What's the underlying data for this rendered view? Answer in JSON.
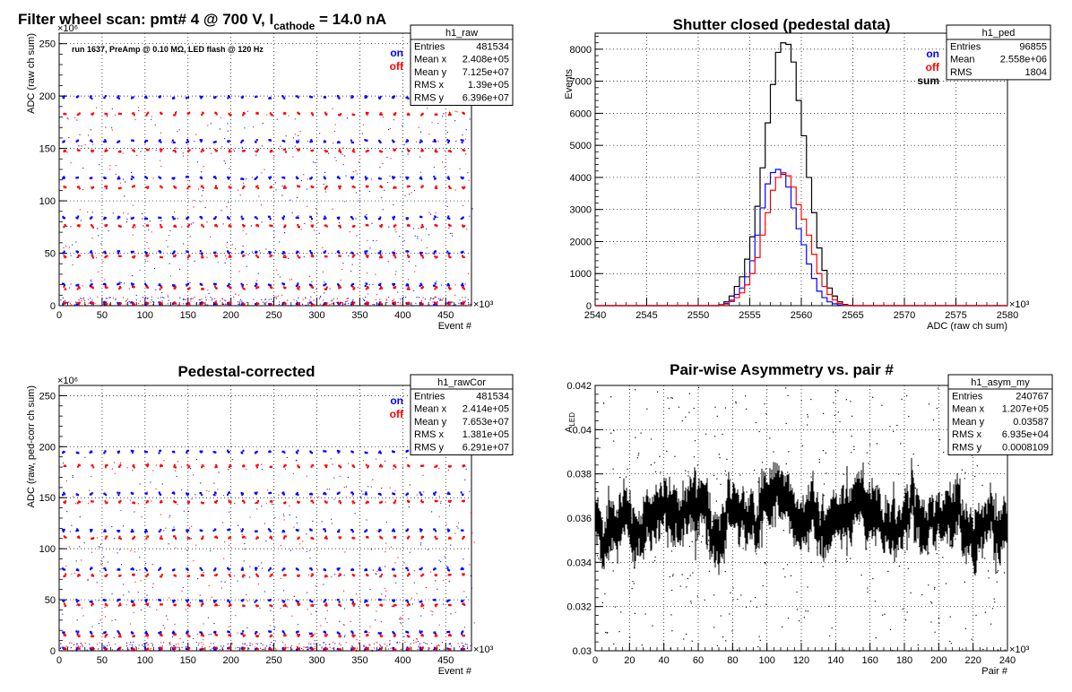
{
  "chart_data": [
    {
      "id": "raw",
      "type": "scatter",
      "title": "Filter wheel scan: pmt#   4 @   700 V, I",
      "title_sub": "cathode",
      "title_tail": "  = 14.0 nA",
      "annotation": "run 1637, PreAmp @ 0.10 MΩ, LED flash @  120 Hz",
      "xlabel": "Event #",
      "ylabel": "ADC (raw ch sum)",
      "x_multiplier": "×10³",
      "y_multiplier": "×10⁶",
      "xlim": [
        0,
        480000
      ],
      "ylim": [
        0,
        260000000
      ],
      "xticks": [
        0,
        50,
        100,
        150,
        200,
        250,
        300,
        350,
        400,
        450
      ],
      "yticks": [
        0,
        50,
        100,
        150,
        200,
        250
      ],
      "grid": true,
      "legend": [
        {
          "label": "on",
          "color": "#0000ff"
        },
        {
          "label": "off",
          "color": "#ff0000"
        }
      ],
      "stats": {
        "name": "h1_raw",
        "rows": [
          [
            "Entries",
            "481534"
          ],
          [
            "Mean x",
            "2.408e+05"
          ],
          [
            "Mean y",
            "7.125e+07"
          ],
          [
            "RMS x",
            "1.39e+05"
          ],
          [
            "RMS y",
            "6.396e+07"
          ]
        ]
      },
      "series": [
        {
          "name": "on",
          "color": "#0000ff",
          "levels": [
            2,
            20,
            51,
            84,
            122,
            157,
            199
          ]
        },
        {
          "name": "off",
          "color": "#ff0000",
          "levels": [
            2,
            17,
            47,
            76,
            113,
            148,
            183
          ]
        }
      ],
      "period": 16000
    },
    {
      "id": "ped",
      "type": "histogram",
      "title": "Shutter closed (pedestal data)",
      "xlabel": "ADC (raw ch sum)",
      "ylabel": "Events",
      "x_multiplier": "×10³",
      "xlim": [
        2540,
        2580
      ],
      "ylim": [
        0,
        8500
      ],
      "xticks": [
        2540,
        2545,
        2550,
        2555,
        2560,
        2565,
        2570,
        2575,
        2580
      ],
      "yticks": [
        0,
        1000,
        2000,
        3000,
        4000,
        5000,
        6000,
        7000,
        8000
      ],
      "grid": true,
      "legend": [
        {
          "label": "on",
          "color": "#0000ff"
        },
        {
          "label": "off",
          "color": "#ff0000"
        },
        {
          "label": "sum",
          "color": "#000000"
        }
      ],
      "stats": {
        "name": "h1_ped",
        "rows": [
          [
            "Entries",
            "96855"
          ],
          [
            "Mean",
            "2.558e+06"
          ],
          [
            "RMS",
            "1804"
          ]
        ]
      },
      "bin_start": 2552,
      "bin_width": 0.5,
      "series": [
        {
          "name": "sum",
          "color": "#000000",
          "values": [
            30,
            120,
            300,
            600,
            900,
            1450,
            2150,
            3100,
            4300,
            5700,
            6900,
            7900,
            8200,
            8150,
            7600,
            6400,
            5300,
            4000,
            2900,
            1800,
            1100,
            550,
            300,
            120,
            40,
            10
          ]
        },
        {
          "name": "on",
          "color": "#0000ff",
          "values": [
            15,
            70,
            170,
            350,
            550,
            900,
            1400,
            2200,
            3050,
            3800,
            4150,
            4250,
            4100,
            3700,
            3050,
            2400,
            1900,
            1300,
            850,
            450,
            250,
            120,
            60,
            20,
            5,
            0
          ]
        },
        {
          "name": "off",
          "color": "#ff0000",
          "values": [
            10,
            50,
            130,
            250,
            400,
            650,
            1000,
            1500,
            2200,
            2900,
            3600,
            4000,
            4150,
            4050,
            3700,
            3150,
            2700,
            2200,
            1600,
            1000,
            600,
            350,
            180,
            70,
            20,
            5
          ]
        }
      ]
    },
    {
      "id": "rawCor",
      "type": "scatter",
      "title": "Pedestal-corrected",
      "xlabel": "Event #",
      "ylabel": "ADC (raw, ped-corr ch sum)",
      "x_multiplier": "×10³",
      "y_multiplier": "×10⁶",
      "xlim": [
        0,
        480000
      ],
      "ylim": [
        0,
        260000000
      ],
      "xticks": [
        0,
        50,
        100,
        150,
        200,
        250,
        300,
        350,
        400,
        450
      ],
      "yticks": [
        0,
        50,
        100,
        150,
        200,
        250
      ],
      "grid": true,
      "legend": [
        {
          "label": "on",
          "color": "#0000ff"
        },
        {
          "label": "off",
          "color": "#ff0000"
        }
      ],
      "stats": {
        "name": "h1_rawCor",
        "rows": [
          [
            "Entries",
            "481534"
          ],
          [
            "Mean x",
            "2.414e+05"
          ],
          [
            "Mean y",
            "7.653e+07"
          ],
          [
            "RMS x",
            "1.381e+05"
          ],
          [
            "RMS y",
            "6.291e+07"
          ]
        ]
      },
      "series": [
        {
          "name": "on",
          "color": "#0000ff",
          "levels": [
            2,
            18,
            49,
            80,
            118,
            154,
            195
          ]
        },
        {
          "name": "off",
          "color": "#ff0000",
          "levels": [
            2,
            15,
            45,
            74,
            111,
            146,
            181
          ]
        }
      ],
      "period": 16000
    },
    {
      "id": "asym",
      "type": "scatter",
      "title": "Pair-wise Asymmetry vs. pair #",
      "xlabel": "Pair #",
      "ylabel": "A",
      "ylabel_sub": "LED",
      "x_multiplier": "×10³",
      "xlim": [
        0,
        240000
      ],
      "ylim": [
        0.03,
        0.042
      ],
      "xticks": [
        0,
        20,
        40,
        60,
        80,
        100,
        120,
        140,
        160,
        180,
        200,
        220,
        240
      ],
      "yticks": [
        "0.03",
        "0.032",
        "0.034",
        "0.036",
        "0.038",
        "0.04",
        "0.042"
      ],
      "grid": true,
      "stats": {
        "name": "h1_asym_my",
        "rows": [
          [
            "Entries",
            "240767"
          ],
          [
            "Mean x",
            "1.207e+05"
          ],
          [
            "Mean y",
            "0.03587"
          ],
          [
            "RMS x",
            "6.935e+04"
          ],
          [
            "RMS y",
            "0.0008109"
          ]
        ]
      },
      "mean": 0.03587,
      "rms": 0.0008109,
      "color": "#000000"
    }
  ]
}
